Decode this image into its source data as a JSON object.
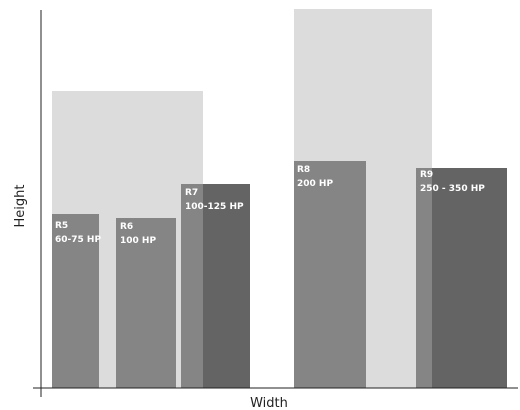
{
  "axes": {
    "x_label": "Width",
    "y_label": "Height"
  },
  "colors": {
    "background_frame": "#dcdcdd",
    "front_drive": "#858585",
    "rear_cabinet": "#646464",
    "axis": "#222222",
    "label_text": "#ffffff"
  },
  "frames": [
    {
      "id": "R5",
      "code": "R5",
      "rating": "60-75 HP"
    },
    {
      "id": "R6",
      "code": "R6",
      "rating": "100 HP"
    },
    {
      "id": "R7",
      "code": "R7",
      "rating": "100-125 HP"
    },
    {
      "id": "R8",
      "code": "R8",
      "rating": "200 HP"
    },
    {
      "id": "R9",
      "code": "R9",
      "rating": "250 - 350 HP"
    }
  ]
}
